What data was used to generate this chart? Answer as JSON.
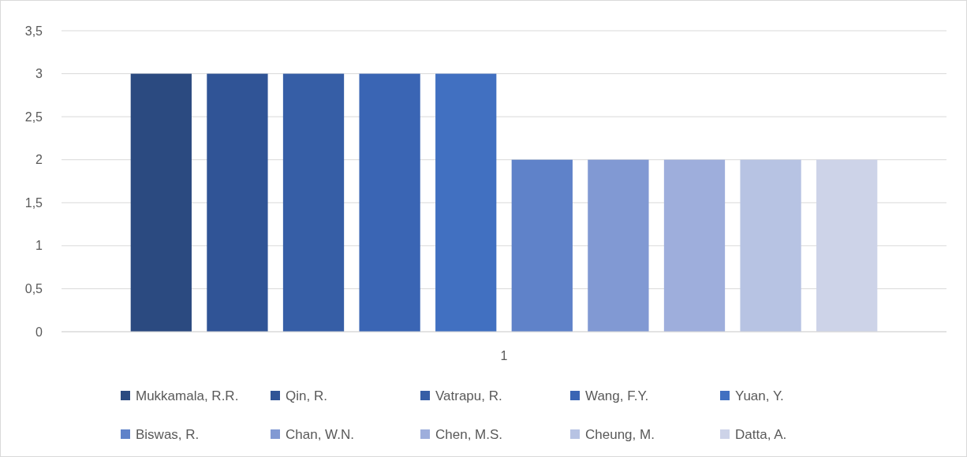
{
  "chart_data": {
    "type": "bar",
    "categories": [
      "1"
    ],
    "series": [
      {
        "name": "Mukkamala, R.R.",
        "color": "#2b4a80",
        "values": [
          3
        ]
      },
      {
        "name": "Qin, R.",
        "color": "#305496",
        "values": [
          3
        ]
      },
      {
        "name": "Vatrapu, R.",
        "color": "#365ea6",
        "values": [
          3
        ]
      },
      {
        "name": "Wang, F.Y.",
        "color": "#3a65b4",
        "values": [
          3
        ]
      },
      {
        "name": "Yuan, Y.",
        "color": "#4170c1",
        "values": [
          3
        ]
      },
      {
        "name": "Biswas, R.",
        "color": "#5f82c9",
        "values": [
          2
        ]
      },
      {
        "name": "Chan, W.N.",
        "color": "#8199d3",
        "values": [
          2
        ]
      },
      {
        "name": "Chen, M.S.",
        "color": "#9eaedc",
        "values": [
          2
        ]
      },
      {
        "name": "Cheung, M.",
        "color": "#b7c3e3",
        "values": [
          2
        ]
      },
      {
        "name": "Datta, A.",
        "color": "#cdd3e8",
        "values": [
          2
        ]
      }
    ],
    "ylim": [
      0,
      3.5
    ],
    "yticks": [
      0,
      {
        "value": 0.5,
        "label": "0,5"
      },
      1,
      {
        "value": 1.5,
        "label": "1,5"
      },
      2,
      {
        "value": 2.5,
        "label": "2,5"
      },
      3,
      {
        "value": 3.5,
        "label": "3,5"
      }
    ],
    "grid": "y",
    "legend": "bottom"
  }
}
